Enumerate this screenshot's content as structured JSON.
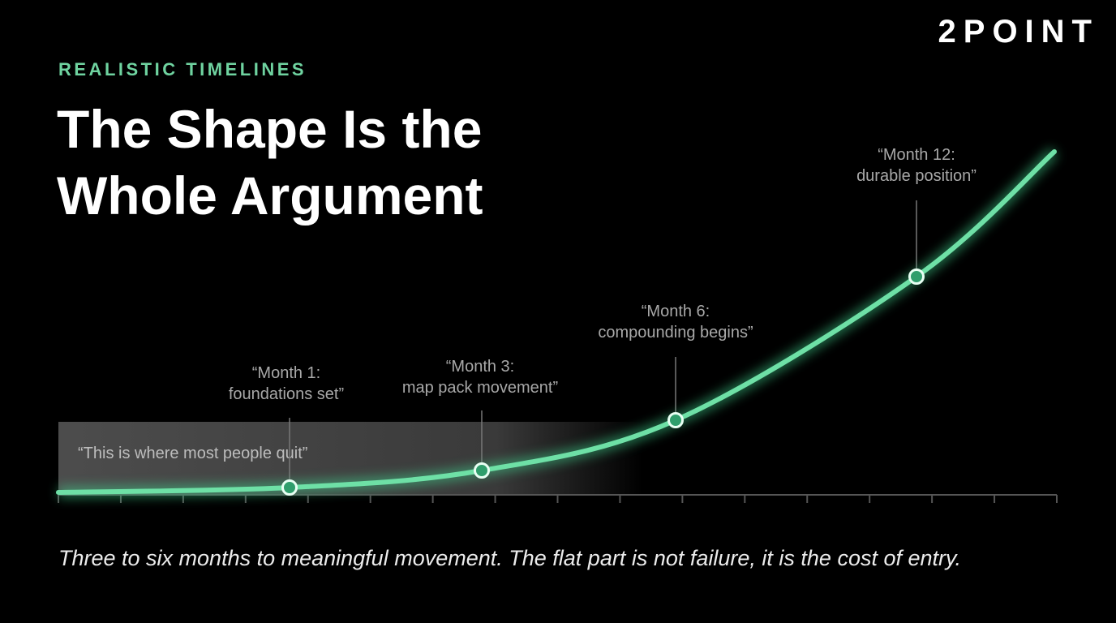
{
  "brand": "2POINT",
  "eyebrow": "REALISTIC TIMELINES",
  "title": [
    "The Shape Is the",
    "Whole Argument"
  ],
  "shaded_region_label": "“This is where most people quit”",
  "milestones": [
    {
      "lines": [
        "“Month 1:",
        "foundations set”"
      ]
    },
    {
      "lines": [
        "“Month 3:",
        "map pack movement”"
      ]
    },
    {
      "lines": [
        "“Month 6:",
        "compounding begins”"
      ]
    },
    {
      "lines": [
        "“Month 12:",
        "durable position”"
      ]
    }
  ],
  "caption": "Three to six months to meaningful movement. The flat part is not failure, it is the cost of entry."
}
